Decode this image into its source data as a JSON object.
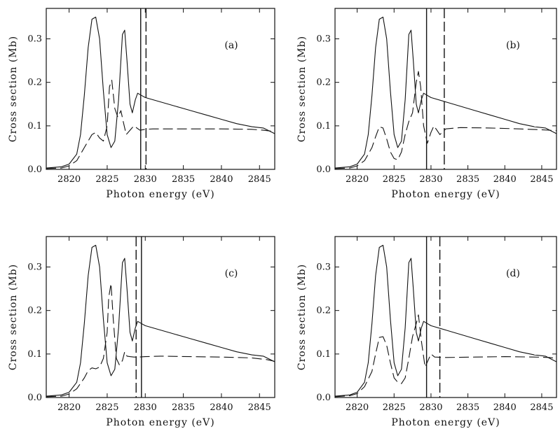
{
  "chart_data": [
    {
      "panel": "(a)",
      "type": "line",
      "xlabel": "Photon energy (eV)",
      "ylabel": "Cross section (Mb)",
      "xlim": [
        2817,
        2847
      ],
      "ylim": [
        0,
        0.37
      ],
      "xticks": [
        "2820",
        "2825",
        "2830",
        "2835",
        "2840",
        "2845"
      ],
      "yticks": [
        "0.0",
        "0.1",
        "0.2",
        "0.3"
      ],
      "vlines": [
        {
          "x": 2829.4,
          "style": "solid"
        },
        {
          "x": 2830.1,
          "style": "dashed"
        }
      ],
      "series": [
        {
          "style": "solid",
          "x": [
            2817,
            2819,
            2820,
            2821,
            2821.5,
            2822,
            2822.5,
            2823,
            2823.5,
            2824,
            2824.5,
            2825,
            2825.5,
            2826,
            2826.5,
            2827,
            2827.3,
            2827.6,
            2828,
            2828.3,
            2828.7,
            2829,
            2829.5,
            2830,
            2832,
            2834,
            2836,
            2838,
            2840,
            2842,
            2844,
            2845.5,
            2847
          ],
          "y": [
            0.003,
            0.006,
            0.012,
            0.035,
            0.08,
            0.17,
            0.28,
            0.345,
            0.35,
            0.3,
            0.18,
            0.08,
            0.05,
            0.065,
            0.16,
            0.31,
            0.32,
            0.25,
            0.15,
            0.13,
            0.16,
            0.175,
            0.17,
            0.165,
            0.155,
            0.145,
            0.135,
            0.125,
            0.115,
            0.105,
            0.098,
            0.095,
            0.082
          ]
        },
        {
          "style": "dashed",
          "x": [
            2817,
            2819,
            2820,
            2821,
            2822,
            2823,
            2823.5,
            2824,
            2824.5,
            2825,
            2825.3,
            2825.6,
            2826,
            2826.4,
            2826.8,
            2827.1,
            2827.5,
            2828,
            2828.5,
            2828.9,
            2829.3,
            2830,
            2831,
            2833,
            2836,
            2840,
            2844,
            2845.5,
            2847
          ],
          "y": [
            0.002,
            0.003,
            0.008,
            0.02,
            0.05,
            0.08,
            0.085,
            0.072,
            0.065,
            0.1,
            0.19,
            0.205,
            0.14,
            0.12,
            0.135,
            0.11,
            0.08,
            0.09,
            0.1,
            0.095,
            0.09,
            0.092,
            0.093,
            0.093,
            0.093,
            0.093,
            0.092,
            0.09,
            0.087
          ]
        }
      ]
    },
    {
      "panel": "(b)",
      "type": "line",
      "xlabel": "Photon energy (eV)",
      "ylabel": "Cross section (Mb)",
      "xlim": [
        2817,
        2847
      ],
      "ylim": [
        0,
        0.37
      ],
      "xticks": [
        "2820",
        "2825",
        "2830",
        "2835",
        "2840",
        "2845"
      ],
      "yticks": [
        "0.0",
        "0.1",
        "0.2",
        "0.3"
      ],
      "vlines": [
        {
          "x": 2829.4,
          "style": "solid"
        },
        {
          "x": 2831.8,
          "style": "dashed"
        }
      ],
      "series": [
        {
          "style": "solid",
          "x": [
            2817,
            2819,
            2820,
            2821,
            2821.5,
            2822,
            2822.5,
            2823,
            2823.5,
            2824,
            2824.5,
            2825,
            2825.5,
            2826,
            2826.5,
            2827,
            2827.3,
            2827.6,
            2828,
            2828.3,
            2828.7,
            2829,
            2829.5,
            2830,
            2832,
            2834,
            2836,
            2838,
            2840,
            2842,
            2844,
            2845.5,
            2847
          ],
          "y": [
            0.003,
            0.006,
            0.012,
            0.035,
            0.08,
            0.17,
            0.28,
            0.345,
            0.35,
            0.3,
            0.18,
            0.08,
            0.05,
            0.065,
            0.16,
            0.31,
            0.32,
            0.25,
            0.15,
            0.13,
            0.16,
            0.175,
            0.17,
            0.165,
            0.155,
            0.145,
            0.135,
            0.125,
            0.115,
            0.105,
            0.098,
            0.095,
            0.082
          ]
        },
        {
          "style": "dashed",
          "x": [
            2817,
            2819,
            2820,
            2821,
            2822,
            2822.5,
            2823,
            2823.5,
            2824,
            2824.5,
            2825,
            2825.5,
            2826,
            2826.5,
            2827,
            2827.5,
            2828,
            2828.3,
            2828.6,
            2829,
            2829.5,
            2830,
            2830.4,
            2830.8,
            2831.2,
            2832,
            2834,
            2838,
            2842,
            2845,
            2847
          ],
          "y": [
            0.002,
            0.003,
            0.008,
            0.02,
            0.05,
            0.075,
            0.098,
            0.095,
            0.07,
            0.04,
            0.025,
            0.022,
            0.04,
            0.08,
            0.11,
            0.13,
            0.2,
            0.225,
            0.19,
            0.1,
            0.06,
            0.085,
            0.1,
            0.09,
            0.08,
            0.093,
            0.096,
            0.095,
            0.093,
            0.091,
            0.089
          ]
        }
      ]
    },
    {
      "panel": "(c)",
      "type": "line",
      "xlabel": "Photon energy (eV)",
      "ylabel": "Cross section (Mb)",
      "xlim": [
        2817,
        2847
      ],
      "ylim": [
        0,
        0.37
      ],
      "xticks": [
        "2820",
        "2825",
        "2830",
        "2835",
        "2840",
        "2845"
      ],
      "yticks": [
        "0.0",
        "0.1",
        "0.2",
        "0.3"
      ],
      "vlines": [
        {
          "x": 2828.8,
          "style": "dashed"
        },
        {
          "x": 2829.5,
          "style": "solid"
        }
      ],
      "series": [
        {
          "style": "solid",
          "x": [
            2817,
            2819,
            2820,
            2821,
            2821.5,
            2822,
            2822.5,
            2823,
            2823.5,
            2824,
            2824.5,
            2825,
            2825.5,
            2826,
            2826.5,
            2827,
            2827.3,
            2827.6,
            2828,
            2828.3,
            2828.7,
            2829,
            2829.5,
            2830,
            2832,
            2834,
            2836,
            2838,
            2840,
            2842,
            2844,
            2845.5,
            2847
          ],
          "y": [
            0.003,
            0.006,
            0.012,
            0.035,
            0.08,
            0.17,
            0.28,
            0.345,
            0.35,
            0.3,
            0.18,
            0.08,
            0.05,
            0.065,
            0.16,
            0.31,
            0.32,
            0.25,
            0.15,
            0.13,
            0.16,
            0.175,
            0.17,
            0.165,
            0.155,
            0.145,
            0.135,
            0.125,
            0.115,
            0.105,
            0.098,
            0.095,
            0.082
          ]
        },
        {
          "style": "dashed",
          "x": [
            2817,
            2819,
            2820,
            2821,
            2822,
            2822.5,
            2823,
            2823.5,
            2824,
            2824.5,
            2825,
            2825.2,
            2825.5,
            2825.8,
            2826.2,
            2826.6,
            2827,
            2827.3,
            2827.6,
            2828,
            2828.5,
            2829,
            2830,
            2832,
            2836,
            2840,
            2844,
            2846,
            2847
          ],
          "y": [
            0.002,
            0.003,
            0.008,
            0.02,
            0.045,
            0.062,
            0.068,
            0.066,
            0.07,
            0.09,
            0.15,
            0.23,
            0.262,
            0.18,
            0.09,
            0.075,
            0.085,
            0.105,
            0.095,
            0.094,
            0.093,
            0.093,
            0.094,
            0.095,
            0.094,
            0.093,
            0.091,
            0.087,
            0.083
          ]
        }
      ]
    },
    {
      "panel": "(d)",
      "type": "line",
      "xlabel": "Photon energy (eV)",
      "ylabel": "Cross section (Mb)",
      "xlim": [
        2817,
        2847
      ],
      "ylim": [
        0,
        0.37
      ],
      "xticks": [
        "2820",
        "2825",
        "2830",
        "2835",
        "2840",
        "2845"
      ],
      "yticks": [
        "0.0",
        "0.1",
        "0.2",
        "0.3"
      ],
      "vlines": [
        {
          "x": 2829.4,
          "style": "solid"
        },
        {
          "x": 2831.2,
          "style": "dashed"
        }
      ],
      "series": [
        {
          "style": "solid",
          "x": [
            2817,
            2819,
            2820,
            2821,
            2821.5,
            2822,
            2822.5,
            2823,
            2823.5,
            2824,
            2824.5,
            2825,
            2825.5,
            2826,
            2826.5,
            2827,
            2827.3,
            2827.6,
            2828,
            2828.3,
            2828.7,
            2829,
            2829.5,
            2830,
            2832,
            2834,
            2836,
            2838,
            2840,
            2842,
            2844,
            2845.5,
            2847
          ],
          "y": [
            0.003,
            0.006,
            0.012,
            0.035,
            0.08,
            0.17,
            0.28,
            0.345,
            0.35,
            0.3,
            0.18,
            0.08,
            0.05,
            0.065,
            0.16,
            0.31,
            0.32,
            0.25,
            0.15,
            0.13,
            0.16,
            0.175,
            0.17,
            0.165,
            0.155,
            0.145,
            0.135,
            0.125,
            0.115,
            0.105,
            0.098,
            0.095,
            0.082
          ]
        },
        {
          "style": "dashed",
          "x": [
            2817,
            2819,
            2820,
            2821,
            2822,
            2822.5,
            2823,
            2823.5,
            2824,
            2824.5,
            2825,
            2825.5,
            2826,
            2826.5,
            2827,
            2827.5,
            2828,
            2828.3,
            2828.7,
            2829.2,
            2829.6,
            2830,
            2830.5,
            2832,
            2836,
            2840,
            2844,
            2846,
            2847
          ],
          "y": [
            0.002,
            0.004,
            0.009,
            0.025,
            0.06,
            0.1,
            0.138,
            0.14,
            0.12,
            0.08,
            0.045,
            0.035,
            0.032,
            0.045,
            0.09,
            0.14,
            0.17,
            0.19,
            0.13,
            0.07,
            0.085,
            0.1,
            0.093,
            0.092,
            0.093,
            0.094,
            0.093,
            0.092,
            0.09
          ]
        }
      ]
    }
  ]
}
